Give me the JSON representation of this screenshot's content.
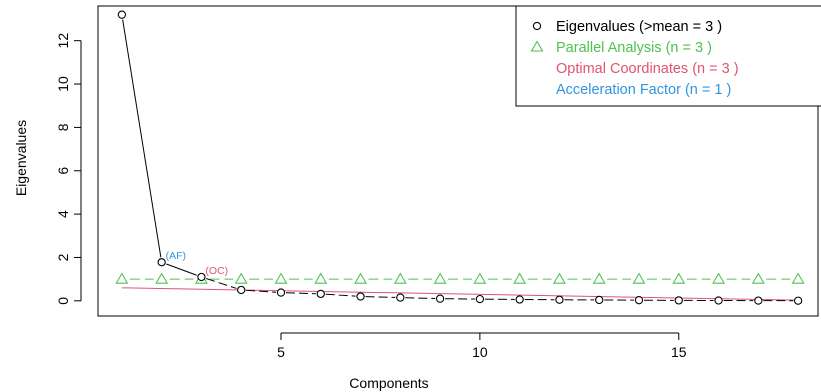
{
  "chart_data": {
    "type": "scatter",
    "title": "",
    "xlabel": "Components",
    "ylabel": "Eigenvalues",
    "xlim": [
      0.4,
      18.5
    ],
    "ylim": [
      -0.7,
      13.6
    ],
    "x_ticks": [
      5,
      10,
      15
    ],
    "y_ticks": [
      0,
      2,
      4,
      6,
      8,
      10,
      12
    ],
    "grid": false,
    "legend_position": "top-right",
    "x": [
      1,
      2,
      3,
      4,
      5,
      6,
      7,
      8,
      9,
      10,
      11,
      12,
      13,
      14,
      15,
      16,
      17,
      18
    ],
    "series": [
      {
        "name": "Eigenvalues (>mean  =  3 )",
        "color": "#000000",
        "marker": "circle",
        "line": "segments",
        "values": [
          13.2,
          1.78,
          1.1,
          0.5,
          0.38,
          0.32,
          0.2,
          0.15,
          0.1,
          0.08,
          0.06,
          0.05,
          0.04,
          0.03,
          0.02,
          0.015,
          0.01,
          0.005
        ]
      },
      {
        "name": "Parallel Analysis (n =  3 )",
        "color": "#4fc24f",
        "marker": "triangle",
        "line": "dashed",
        "values": [
          1,
          1,
          1,
          1,
          1,
          1,
          1,
          1,
          1,
          1,
          1,
          1,
          1,
          1,
          1,
          1,
          1,
          1
        ]
      },
      {
        "name": "Optimal Coordinates (n =  3 )",
        "color": "#e05470",
        "marker": "none",
        "line": "solid",
        "x": [
          1,
          18
        ],
        "values": [
          0.6,
          0.03
        ]
      },
      {
        "name": "Acceleration Factor (n =  1 )",
        "color": "#2f96e0",
        "marker": "none",
        "line": "none",
        "values": []
      }
    ],
    "annotations": [
      {
        "text": "(AF)",
        "x": 2,
        "y": 1.78,
        "color": "#2f96e0"
      },
      {
        "text": "(OC)",
        "x": 3,
        "y": 1.1,
        "color": "#e05470"
      }
    ]
  }
}
